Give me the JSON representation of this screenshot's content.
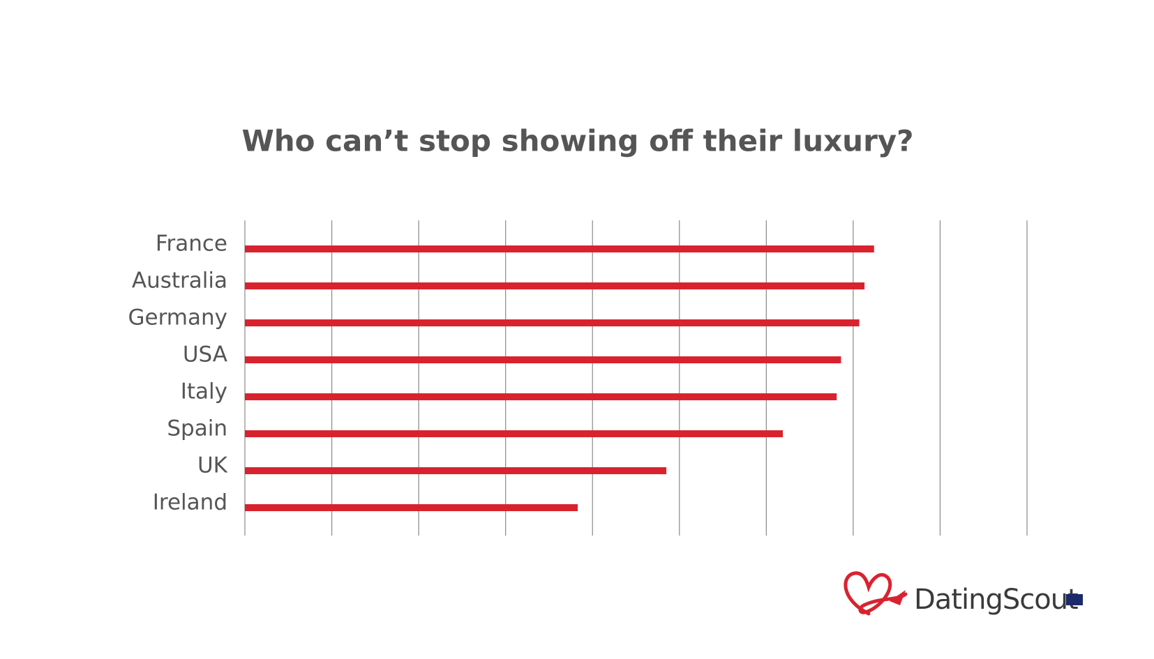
{
  "chart_data": {
    "type": "barh",
    "title": "Who can’t stop showing off their luxury?",
    "categories": [
      "France",
      "Australia",
      "Germany",
      "USA",
      "Italy",
      "Spain",
      "UK",
      "Ireland"
    ],
    "values": [
      7.24,
      7.13,
      7.07,
      6.86,
      6.81,
      6.19,
      4.85,
      3.83
    ],
    "color": "#d8232f",
    "xlim": [
      0,
      9
    ],
    "xticks": [
      0,
      1,
      2,
      3,
      4,
      5,
      6,
      7,
      8,
      9
    ],
    "grid": true
  },
  "logo": "DatingScout"
}
